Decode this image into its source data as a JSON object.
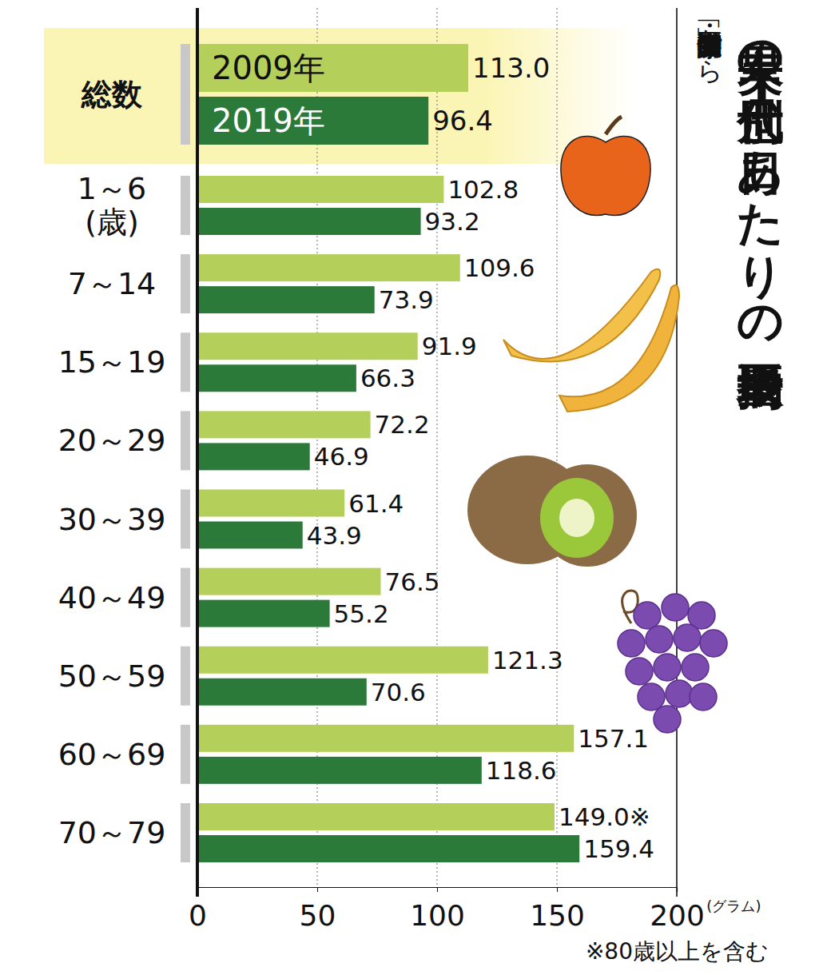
{
  "chart_data": {
    "type": "bar",
    "orientation": "horizontal",
    "title": "果実の世代別1日あたりの平均摂取量",
    "source": "厚生労働省「国民健康・栄養調査」から",
    "note": "※80歳以上を含む",
    "xlabel": "(グラム)",
    "categories": [
      "総数",
      "1～6(歳)",
      "7～14",
      "15～19",
      "20～29",
      "30～39",
      "40～49",
      "50～59",
      "60～69",
      "70～79"
    ],
    "series": [
      {
        "name": "2009年",
        "color": "#b5cf5b",
        "values": [
          113.0,
          102.8,
          109.6,
          91.9,
          72.2,
          61.4,
          76.5,
          121.3,
          157.1,
          149.0
        ],
        "value_labels": [
          "113.0",
          "102.8",
          "109.6",
          "91.9",
          "72.2",
          "61.4",
          "76.5",
          "121.3",
          "157.1",
          "149.0※"
        ]
      },
      {
        "name": "2019年",
        "color": "#2c7a3a",
        "values": [
          96.4,
          93.2,
          73.9,
          66.3,
          46.9,
          43.9,
          55.2,
          70.6,
          118.6,
          159.4
        ],
        "value_labels": [
          "96.4",
          "93.2",
          "73.9",
          "66.3",
          "46.9",
          "43.9",
          "55.2",
          "70.6",
          "118.6",
          "159.4"
        ]
      }
    ],
    "xlim": [
      0,
      200
    ],
    "xticks": [
      0,
      50,
      100,
      150,
      200
    ],
    "grid": true,
    "data_labels": true,
    "legend": "top-left"
  }
}
